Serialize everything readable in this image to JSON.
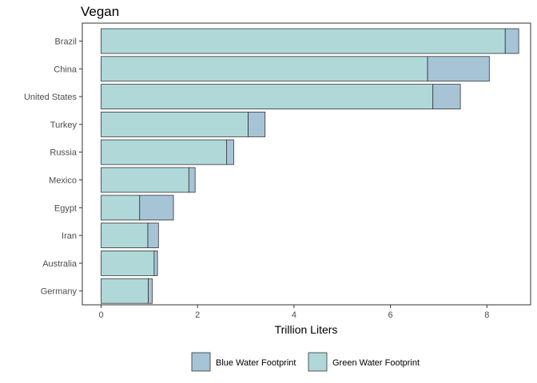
{
  "chart_data": {
    "type": "bar",
    "orientation": "horizontal",
    "stacked": true,
    "title": "Vegan",
    "xlabel": "Trillion Liters",
    "ylabel": "",
    "xlim": [
      0,
      8.66
    ],
    "xticks": [
      0,
      2,
      4,
      6,
      8
    ],
    "categories": [
      "Brazil",
      "China",
      "United States",
      "Turkey",
      "Russia",
      "Mexico",
      "Egypt",
      "Iran",
      "Australia",
      "Germany"
    ],
    "series": [
      {
        "name": "Green Water Footprint",
        "color": "#b0d8d8",
        "values": [
          8.38,
          6.77,
          6.88,
          3.05,
          2.6,
          1.82,
          0.8,
          0.97,
          1.1,
          0.98
        ]
      },
      {
        "name": "Blue Water Footprint",
        "color": "#a6c4d6",
        "values": [
          0.28,
          1.28,
          0.57,
          0.35,
          0.15,
          0.13,
          0.7,
          0.22,
          0.07,
          0.08
        ]
      }
    ],
    "legend_order": [
      "Blue Water Footprint",
      "Green Water Footprint"
    ],
    "legend_position": "bottom",
    "grid": false,
    "theme": "classic bordered panel"
  }
}
